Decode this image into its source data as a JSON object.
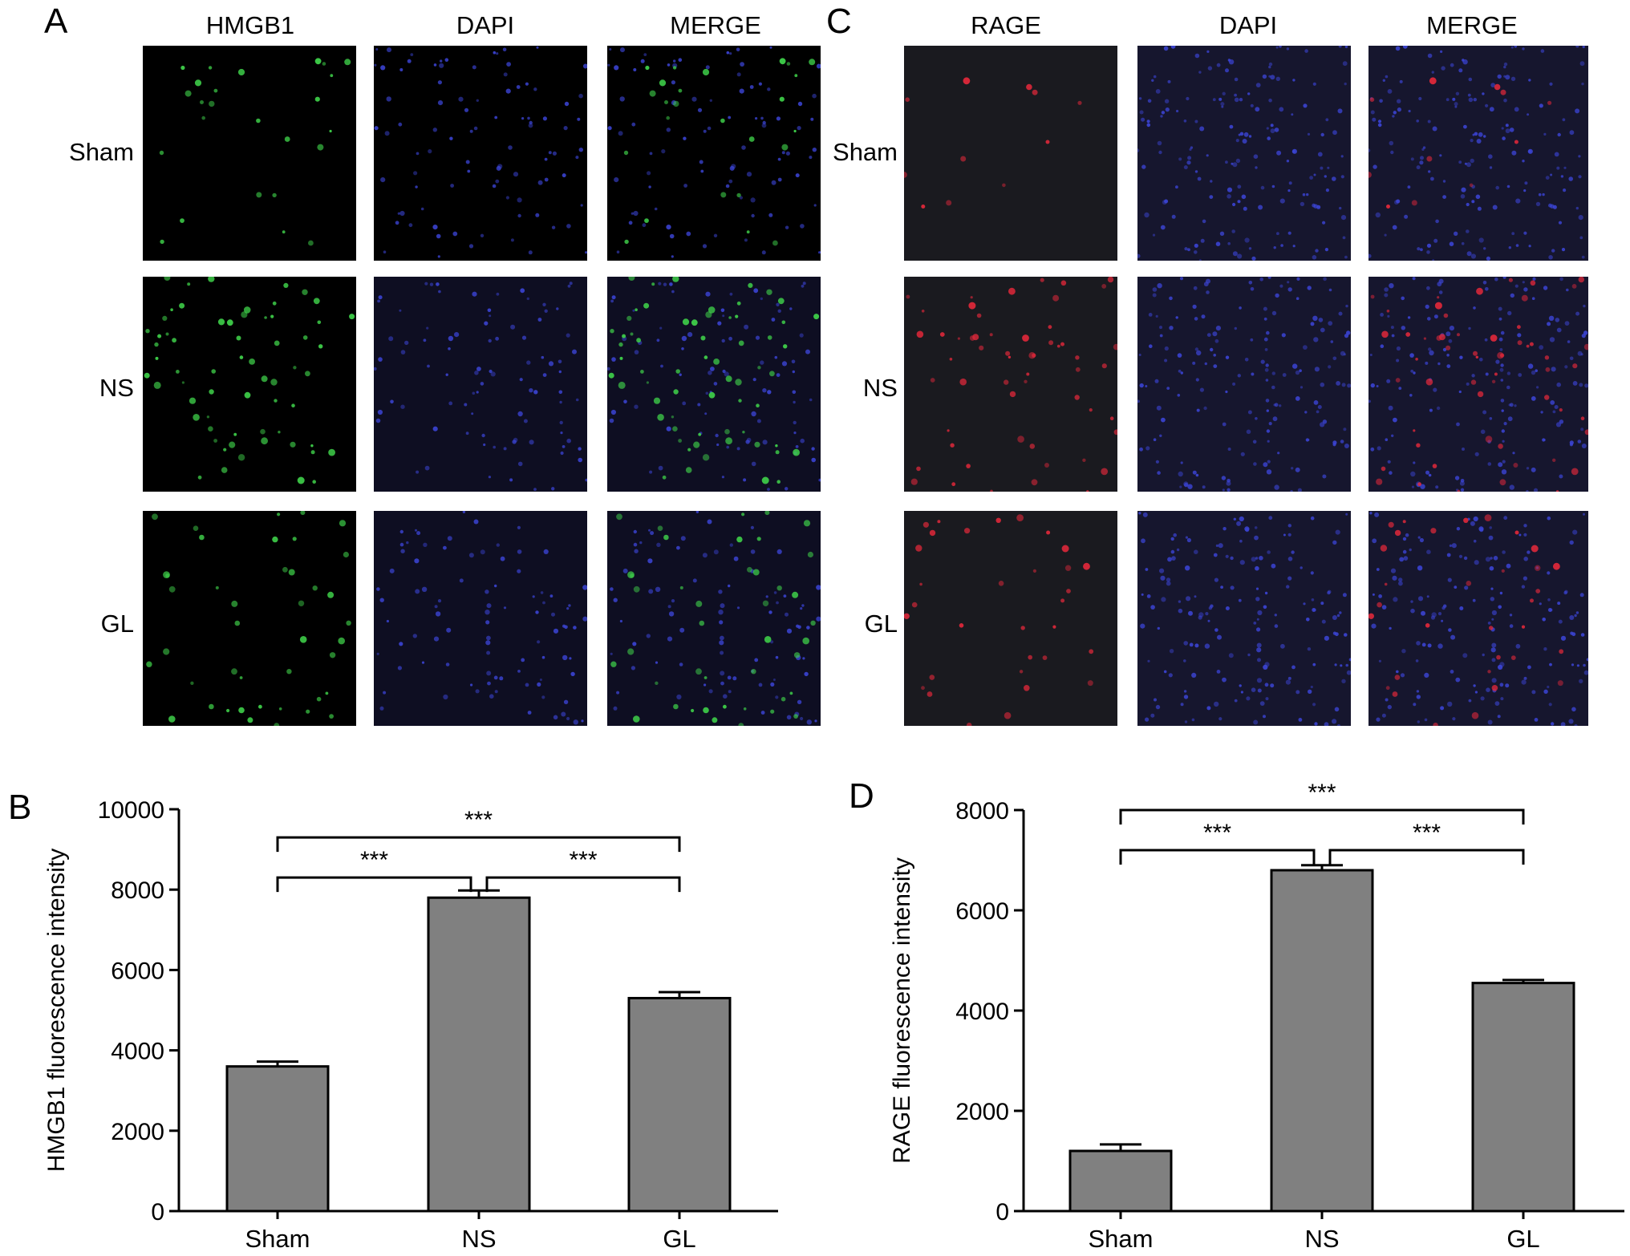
{
  "panels": {
    "A": {
      "letter": "A",
      "columns": [
        "HMGB1",
        "DAPI",
        "MERGE"
      ],
      "rows": [
        "Sham",
        "NS",
        "GL"
      ],
      "channel_colors": {
        "marker": "#3fd24a",
        "nucleus": "#3c45d8"
      }
    },
    "B": {
      "letter": "B"
    },
    "C": {
      "letter": "C",
      "columns": [
        "RAGE",
        "DAPI",
        "MERGE"
      ],
      "rows": [
        "Sham",
        "NS",
        "GL"
      ],
      "channel_colors": {
        "marker": "#e0283a",
        "nucleus": "#3c45d8"
      }
    },
    "D": {
      "letter": "D"
    }
  },
  "image_intensity": {
    "A": {
      "Sham": 0.35,
      "NS": 0.9,
      "GL": 0.6
    },
    "C": {
      "Sham": 0.15,
      "NS": 0.8,
      "GL": 0.45
    }
  },
  "chart_data": [
    {
      "type": "bar",
      "panel": "B",
      "categories": [
        "Sham",
        "NS",
        "GL"
      ],
      "values": [
        3600,
        7800,
        5300
      ],
      "errors": [
        120,
        180,
        150
      ],
      "ylabel": "HMGB1 fluorescence intensity",
      "ylim": [
        0,
        10000
      ],
      "yticks": [
        0,
        2000,
        4000,
        6000,
        8000,
        10000
      ],
      "bar_color": "#808080",
      "significance": [
        {
          "from": 0,
          "to": 1,
          "label": "***",
          "level": 8300
        },
        {
          "from": 1,
          "to": 2,
          "label": "***",
          "level": 8300
        },
        {
          "from": 0,
          "to": 2,
          "label": "***",
          "level": 9300
        }
      ]
    },
    {
      "type": "bar",
      "panel": "D",
      "categories": [
        "Sham",
        "NS",
        "GL"
      ],
      "values": [
        1200,
        6800,
        4550
      ],
      "errors": [
        130,
        100,
        60
      ],
      "ylabel": "RAGE fluorescence intensity",
      "ylim": [
        0,
        8000
      ],
      "yticks": [
        0,
        2000,
        4000,
        6000,
        8000
      ],
      "bar_color": "#808080",
      "significance": [
        {
          "from": 0,
          "to": 1,
          "label": "***",
          "level": 7200
        },
        {
          "from": 1,
          "to": 2,
          "label": "***",
          "level": 7200
        },
        {
          "from": 0,
          "to": 2,
          "label": "***",
          "level": 8000
        }
      ]
    }
  ]
}
